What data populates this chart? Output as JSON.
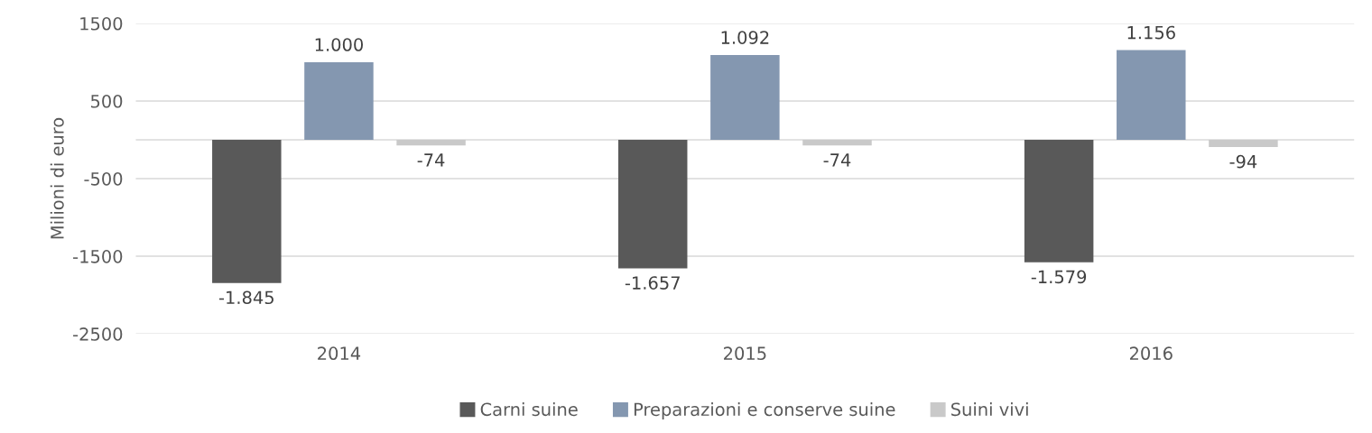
{
  "chart_data": {
    "type": "bar",
    "ylabel": "Milioni di euro",
    "categories": [
      "2014",
      "2015",
      "2016"
    ],
    "series": [
      {
        "name": "Carni suine",
        "color": "#595959",
        "values": [
          -1845,
          -1657,
          -1579
        ],
        "value_labels": [
          "-1.845",
          "-1.657",
          "-1.579"
        ]
      },
      {
        "name": "Preparazioni e conserve suine",
        "color": "#8497b0",
        "values": [
          1000,
          1092,
          1156
        ],
        "value_labels": [
          "1.000",
          "1.092",
          "1.156"
        ]
      },
      {
        "name": "Suini vivi",
        "color": "#c9c9c9",
        "values": [
          -74,
          -74,
          -94
        ],
        "value_labels": [
          "-74",
          "-74",
          "-94"
        ]
      }
    ],
    "ylim": [
      -2500,
      1500
    ],
    "yticks": [
      -2500,
      -1500,
      -500,
      500,
      1500
    ],
    "ref_lines": [
      {
        "axis": "y",
        "value": 0,
        "color": "#d9d9d9"
      }
    ],
    "grid": "y",
    "legend": "bottom"
  }
}
